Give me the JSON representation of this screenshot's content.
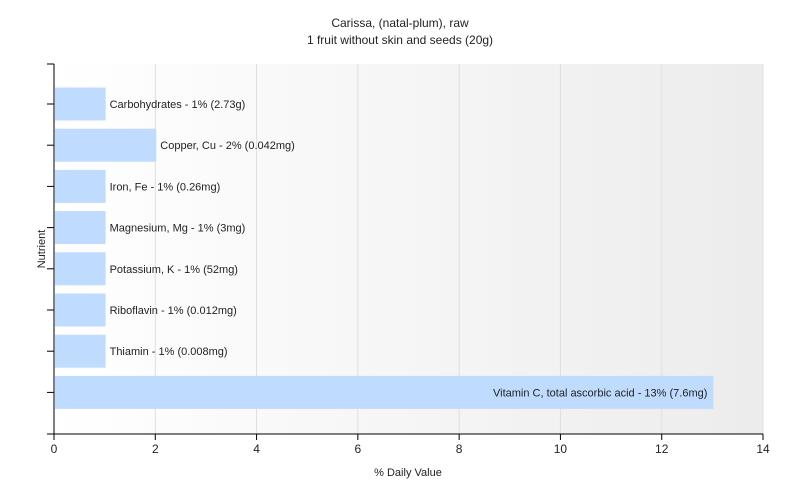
{
  "chart_data": {
    "type": "bar",
    "orientation": "horizontal",
    "title": "Carissa, (natal-plum), raw",
    "subtitle": "1 fruit without skin and seeds (20g)",
    "xlabel": "% Daily Value",
    "ylabel": "Nutrient",
    "xlim": [
      0,
      14
    ],
    "xticks": [
      0,
      2,
      4,
      6,
      8,
      10,
      12,
      14
    ],
    "grid": true,
    "bar_color": "#bfdcff",
    "plot_background_gradient": [
      "#ffffff",
      "#ececec"
    ],
    "categories": [
      "Carbohydrates",
      "Copper, Cu",
      "Iron, Fe",
      "Magnesium, Mg",
      "Potassium, K",
      "Riboflavin",
      "Thiamin",
      "Vitamin C, total ascorbic acid"
    ],
    "values": [
      1,
      2,
      1,
      1,
      1,
      1,
      1,
      13
    ],
    "bar_labels": [
      "Carbohydrates - 1% (2.73g)",
      "Copper, Cu - 2% (0.042mg)",
      "Iron, Fe - 1% (0.26mg)",
      "Magnesium, Mg - 1% (3mg)",
      "Potassium, K - 1% (52mg)",
      "Riboflavin - 1% (0.012mg)",
      "Thiamin - 1% (0.008mg)",
      "Vitamin C, total ascorbic acid - 13% (7.6mg)"
    ]
  }
}
